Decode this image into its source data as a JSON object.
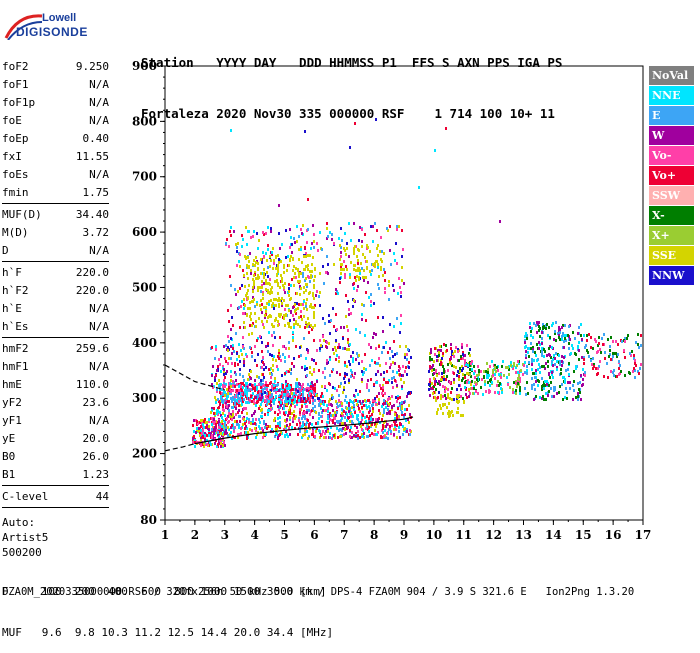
{
  "logo": {
    "line1": "Lowell",
    "line2": "DIGISONDE"
  },
  "header": {
    "line1": "Station   YYYY DAY   DDD HHMMSS P1  FFS S AXN PPS IGA PS",
    "line2": "Fortaleza 2020 Nov30 335 000000 RSF    1 714 100 10+ 11"
  },
  "params": [
    {
      "name": "foF2",
      "value": "9.250"
    },
    {
      "name": "foF1",
      "value": "N/A"
    },
    {
      "name": "foF1p",
      "value": "N/A"
    },
    {
      "name": "foE",
      "value": "N/A"
    },
    {
      "name": "foEp",
      "value": "0.40"
    },
    {
      "name": "fxI",
      "value": "11.55"
    },
    {
      "name": "foEs",
      "value": "N/A"
    },
    {
      "name": "fmin",
      "value": "1.75"
    },
    {
      "sep": true
    },
    {
      "name": "MUF(D)",
      "value": "34.40"
    },
    {
      "name": "M(D)",
      "value": "3.72"
    },
    {
      "name": "D",
      "value": "N/A"
    },
    {
      "sep": true
    },
    {
      "name": "h`F",
      "value": "220.0"
    },
    {
      "name": "h`F2",
      "value": "220.0"
    },
    {
      "name": "h`E",
      "value": "N/A"
    },
    {
      "name": "h`Es",
      "value": "N/A"
    },
    {
      "sep": true
    },
    {
      "name": "hmF2",
      "value": "259.6"
    },
    {
      "name": "hmF1",
      "value": "N/A"
    },
    {
      "name": "hmE",
      "value": "110.0"
    },
    {
      "name": "yF2",
      "value": "23.6"
    },
    {
      "name": "yF1",
      "value": "N/A"
    },
    {
      "name": "yE",
      "value": "20.0"
    },
    {
      "name": "B0",
      "value": "26.0"
    },
    {
      "name": "B1",
      "value": "1.23"
    },
    {
      "sep": true
    },
    {
      "name": "C-level",
      "value": "44"
    },
    {
      "sep": true
    }
  ],
  "auto_lines": [
    "Auto:",
    "Artist5",
    "500200"
  ],
  "legend": [
    {
      "label": "NoVal",
      "color": "#7f7f7f"
    },
    {
      "label": "NNE",
      "color": "#00e5ff"
    },
    {
      "label": "E",
      "color": "#3da5f5"
    },
    {
      "label": "W",
      "color": "#a0009e"
    },
    {
      "label": "Vo-",
      "color": "#ff3fa8"
    },
    {
      "label": "Vo+",
      "color": "#ee0034"
    },
    {
      "label": "SSW",
      "color": "#ffb0b0"
    },
    {
      "label": "X-",
      "color": "#007e00"
    },
    {
      "label": "X+",
      "color": "#9acd32"
    },
    {
      "label": "SSE",
      "color": "#d4d400"
    },
    {
      "label": "NNW",
      "color": "#1a0fcc"
    }
  ],
  "footer": {
    "line1": "D     100  200  400  600  800 1000 1500 3000 [km]",
    "line2": "MUF   9.6  9.8 10.3 11.2 12.5 14.4 20.0 34.4 [MHz]",
    "file": "FZA0M_2020335000000.RSF / 320fx256h 50 kHz 5.0 km / DPS-4 FZA0M 904 / 3.9 S 321.6 E   Ion2Png 1.3.20"
  },
  "chart_data": {
    "type": "scatter",
    "title": "",
    "xlabel": "",
    "ylabel": "",
    "xlim": [
      1,
      17
    ],
    "ylim": [
      80,
      900
    ],
    "x_ticks": [
      1,
      2,
      3,
      4,
      5,
      6,
      7,
      8,
      9,
      10,
      11,
      12,
      13,
      14,
      15,
      16,
      17
    ],
    "y_ticks": [
      80,
      200,
      300,
      400,
      500,
      600,
      700,
      800,
      900
    ],
    "grid": false,
    "legend_position": "right",
    "clusters": [
      {
        "name": "F-trace low",
        "x": [
          1.9,
          3.0
        ],
        "y": [
          215,
          265
        ],
        "count": 220,
        "palette": [
          4,
          5,
          3,
          9,
          1
        ]
      },
      {
        "name": "F-trace main",
        "x": [
          2.5,
          9.2
        ],
        "y": [
          230,
          300
        ],
        "count": 900,
        "palette": [
          5,
          4,
          3,
          2,
          9,
          1
        ]
      },
      {
        "name": "F-trace E",
        "x": [
          2.8,
          6.0
        ],
        "y": [
          295,
          330
        ],
        "count": 450,
        "palette": [
          2,
          1,
          4,
          5
        ]
      },
      {
        "name": "F-trace upper",
        "x": [
          2.5,
          9.2
        ],
        "y": [
          300,
          400
        ],
        "count": 500,
        "palette": [
          4,
          5,
          3,
          1,
          2,
          9,
          10
        ]
      },
      {
        "name": "Spread 3-9 MHz",
        "x": [
          3.0,
          9.0
        ],
        "y": [
          400,
          620
        ],
        "count": 450,
        "palette": [
          9,
          3,
          4,
          5,
          1,
          2,
          10
        ]
      },
      {
        "name": "SSE 4-6",
        "x": [
          3.6,
          6.0
        ],
        "y": [
          430,
          560
        ],
        "count": 260,
        "palette": [
          9
        ]
      },
      {
        "name": "SSE 7-8",
        "x": [
          6.8,
          8.3
        ],
        "y": [
          520,
          580
        ],
        "count": 70,
        "palette": [
          9
        ]
      },
      {
        "name": "10-11 MHz",
        "x": [
          9.8,
          11.2
        ],
        "y": [
          300,
          400
        ],
        "count": 200,
        "palette": [
          10,
          5,
          4,
          3,
          7,
          9
        ]
      },
      {
        "name": "10-11 SSE",
        "x": [
          10.0,
          11.0
        ],
        "y": [
          270,
          310
        ],
        "count": 40,
        "palette": [
          9
        ]
      },
      {
        "name": "X- 11-13",
        "x": [
          11.0,
          13.0
        ],
        "y": [
          310,
          370
        ],
        "count": 170,
        "palette": [
          7,
          8,
          1,
          4
        ]
      },
      {
        "name": "13-15 MHz",
        "x": [
          13.0,
          15.0
        ],
        "y": [
          300,
          440
        ],
        "count": 320,
        "palette": [
          1,
          2,
          3,
          7
        ]
      },
      {
        "name": "15-17 MHz",
        "x": [
          15.0,
          17.0
        ],
        "y": [
          340,
          420
        ],
        "count": 120,
        "palette": [
          7,
          5,
          4,
          2
        ]
      },
      {
        "name": "Isolated high",
        "x": [
          1.6,
          13.5
        ],
        "y": [
          560,
          850
        ],
        "count": 14,
        "palette": [
          1,
          5,
          3,
          4,
          10
        ]
      }
    ],
    "lines": [
      {
        "name": "dashed-upper",
        "style": "dashed",
        "points": [
          [
            1.0,
            360
          ],
          [
            2.0,
            330
          ],
          [
            3.0,
            315
          ]
        ]
      },
      {
        "name": "dashed-lower",
        "style": "dashed",
        "points": [
          [
            1.0,
            205
          ],
          [
            1.6,
            212
          ],
          [
            2.0,
            218
          ]
        ]
      },
      {
        "name": "solid-profile",
        "style": "solid",
        "points": [
          [
            2.0,
            218
          ],
          [
            3.0,
            228
          ],
          [
            4.0,
            236
          ],
          [
            5.0,
            242
          ],
          [
            6.0,
            247
          ],
          [
            7.0,
            251
          ],
          [
            8.0,
            256
          ],
          [
            9.0,
            262
          ],
          [
            9.3,
            266
          ]
        ]
      }
    ]
  }
}
